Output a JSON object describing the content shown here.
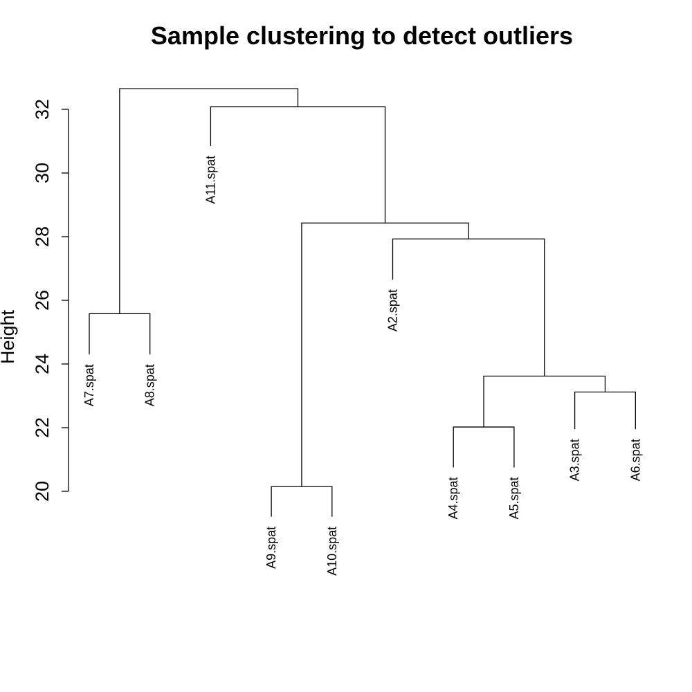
{
  "chart_data": {
    "type": "dendrogram",
    "title": "Sample clustering to detect outliers",
    "ylabel": "Height",
    "xlabel": "",
    "ylim": [
      20,
      33
    ],
    "yticks": [
      20,
      22,
      24,
      26,
      28,
      30,
      32
    ],
    "colors": {
      "line": "#000000",
      "text": "#000000"
    },
    "leaves": [
      {
        "label": "A7.spat",
        "height": 24.3
      },
      {
        "label": "A8.spat",
        "height": 24.3
      },
      {
        "label": "A11.spat",
        "height": 30.85
      },
      {
        "label": "A9.spat",
        "height": 19.2
      },
      {
        "label": "A10.spat",
        "height": 19.2
      },
      {
        "label": "A2.spat",
        "height": 26.65
      },
      {
        "label": "A4.spat",
        "height": 20.75
      },
      {
        "label": "A5.spat",
        "height": 20.75
      },
      {
        "label": "A3.spat",
        "height": 21.95
      },
      {
        "label": "A6.spat",
        "height": 21.95
      }
    ],
    "merges": [
      {
        "id": "m1",
        "left": "A7.spat",
        "right": "A8.spat",
        "height": 25.58
      },
      {
        "id": "m2",
        "left": "A9.spat",
        "right": "A10.spat",
        "height": 20.15
      },
      {
        "id": "m3",
        "left": "A4.spat",
        "right": "A5.spat",
        "height": 22.02
      },
      {
        "id": "m4",
        "left": "A3.spat",
        "right": "A6.spat",
        "height": 23.12
      },
      {
        "id": "m5",
        "left": "m3",
        "right": "m4",
        "height": 23.62
      },
      {
        "id": "m6",
        "left": "A2.spat",
        "right": "m5",
        "height": 27.93
      },
      {
        "id": "m7",
        "left": "m2",
        "right": "m6",
        "height": 28.43
      },
      {
        "id": "m8",
        "left": "A11.spat",
        "right": "m7",
        "height": 32.08
      },
      {
        "id": "m9",
        "left": "m1",
        "right": "m8",
        "height": 32.65
      }
    ]
  }
}
